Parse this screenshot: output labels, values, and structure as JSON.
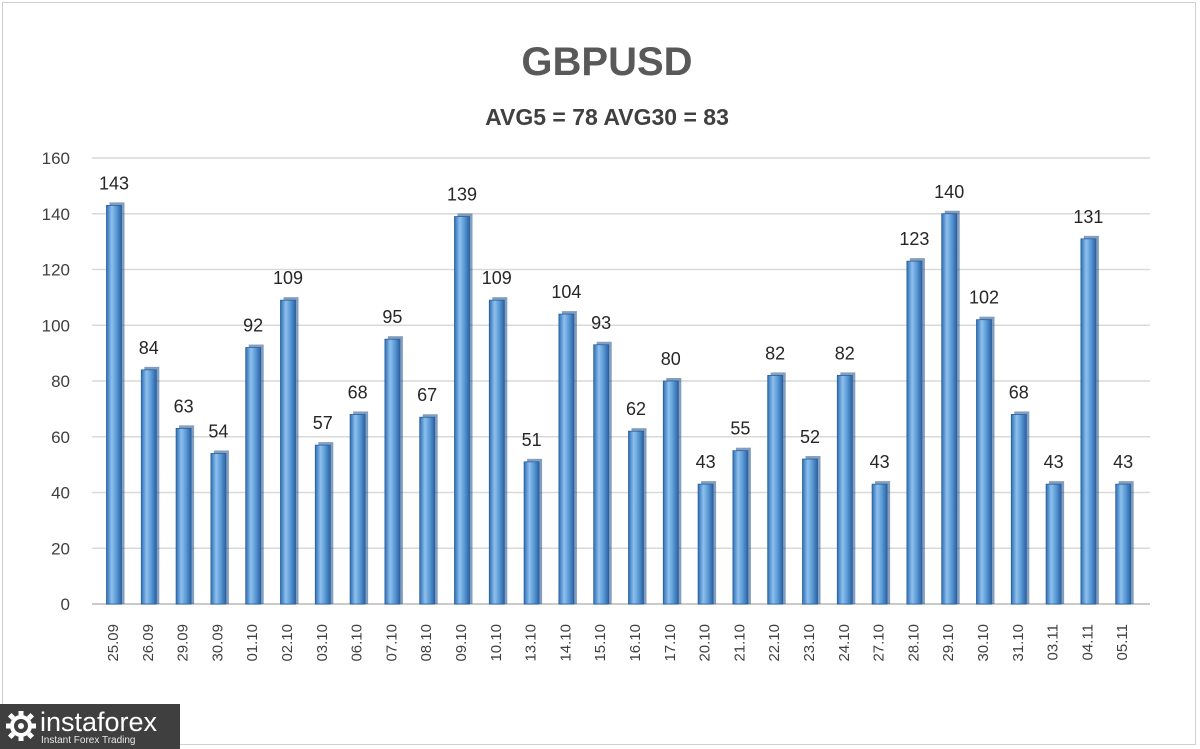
{
  "chart_data": {
    "type": "bar",
    "title": "GBPUSD",
    "subtitle": "AVG5 = 78 AVG30 = 83",
    "categories": [
      "25.09",
      "26.09",
      "29.09",
      "30.09",
      "01.10",
      "02.10",
      "03.10",
      "06.10",
      "07.10",
      "08.10",
      "09.10",
      "10.10",
      "13.10",
      "14.10",
      "15.10",
      "16.10",
      "17.10",
      "20.10",
      "21.10",
      "22.10",
      "23.10",
      "24.10",
      "27.10",
      "28.10",
      "29.10",
      "30.10",
      "31.10",
      "03.11",
      "04.11",
      "05.11"
    ],
    "values": [
      143,
      84,
      63,
      54,
      92,
      109,
      57,
      68,
      95,
      67,
      139,
      109,
      51,
      104,
      93,
      62,
      80,
      43,
      55,
      82,
      52,
      82,
      43,
      123,
      140,
      102,
      68,
      43,
      131,
      43
    ],
    "ylim": [
      0,
      160
    ],
    "yticks": [
      0,
      20,
      40,
      60,
      80,
      100,
      120,
      140,
      160
    ],
    "grid": true,
    "data_labels": true,
    "legend": "none",
    "bar_color": "#5b9bd5"
  },
  "watermark": {
    "name": "instaforex",
    "tagline": "Instant Forex Trading"
  }
}
